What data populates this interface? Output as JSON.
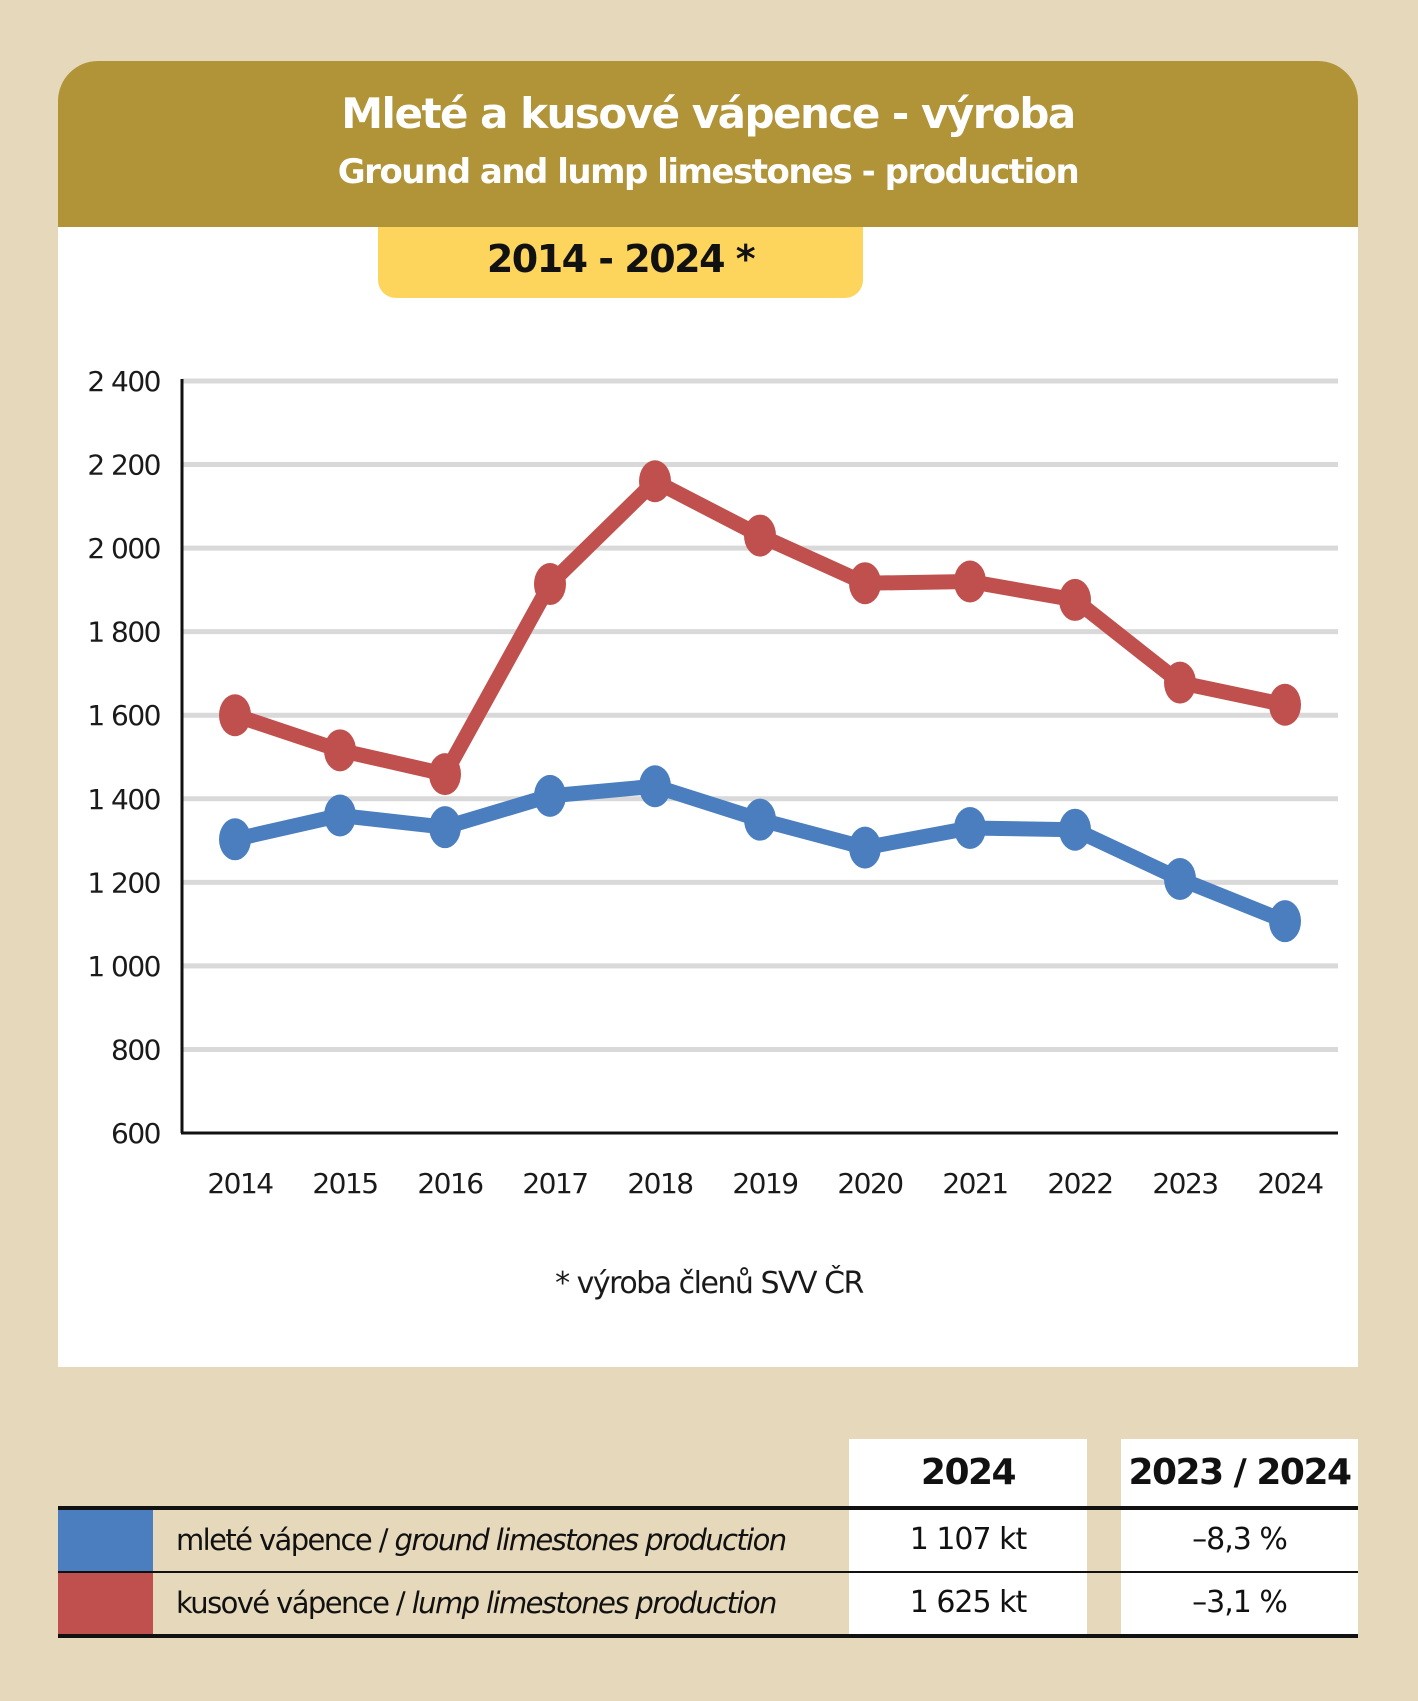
{
  "header": {
    "title_cz": "Mleté a kusové vápence - výroba",
    "title_en": "Ground and lump limestones - production",
    "period": "2014 - 2024 *"
  },
  "footnote": "* výroba členů SVV ČR",
  "colors": {
    "background": "#e6d8bb",
    "header": "#b19338",
    "badge": "#fdd55d",
    "ground": "#4a7ebf",
    "lump": "#c0504d",
    "grid": "#d9d9d9"
  },
  "chart_data": {
    "type": "line",
    "title": "Mleté a kusové vápence - výroba / Ground and lump limestones - production",
    "subtitle": "2014 - 2024 *",
    "xlabel": "",
    "ylabel": "",
    "x": [
      "2014",
      "2015",
      "2016",
      "2017",
      "2018",
      "2019",
      "2020",
      "2021",
      "2022",
      "2023",
      "2024"
    ],
    "ylim": [
      600,
      2400
    ],
    "yticks": [
      600,
      800,
      1000,
      1200,
      1400,
      1600,
      1800,
      2000,
      2200,
      2400
    ],
    "ytick_labels": [
      "600",
      "800",
      "1 000",
      "1 200",
      "1 400",
      "1 600",
      "1 800",
      "2 000",
      "2 200",
      "2 400"
    ],
    "grid": true,
    "legend": "bottom-table",
    "series": [
      {
        "name": "kusové vápence / lump limestones production",
        "color": "#c0504d",
        "values": [
          1600,
          1516,
          1459,
          1914,
          2160,
          2030,
          1916,
          1920,
          1876,
          1678,
          1625
        ]
      },
      {
        "name": "mleté vápence / ground limestones production",
        "color": "#4a7ebf",
        "values": [
          1303,
          1360,
          1332,
          1407,
          1430,
          1350,
          1283,
          1330,
          1326,
          1208,
          1107
        ]
      }
    ]
  },
  "table": {
    "headers": {
      "year": "2024",
      "change": "2023 / 2024"
    },
    "rows": [
      {
        "label_cz": "mleté vápence / ",
        "label_en": "ground limestones production",
        "color": "#4a7ebf",
        "value": "1 107 kt",
        "change": "–8,3 %"
      },
      {
        "label_cz": "kusové vápence / ",
        "label_en": "lump limestones production",
        "color": "#c0504d",
        "value": "1 625 kt",
        "change": "–3,1 %"
      }
    ]
  }
}
